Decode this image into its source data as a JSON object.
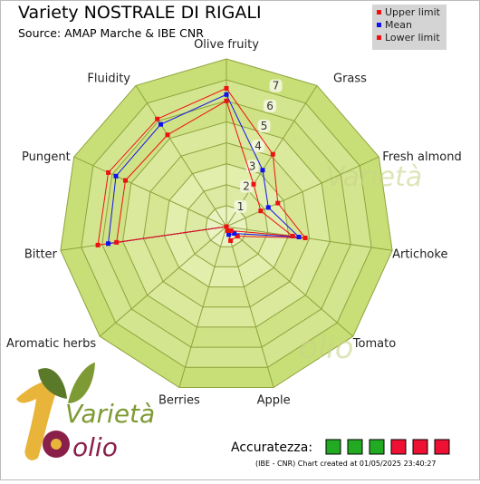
{
  "header": {
    "title": "Variety NOSTRALE DI RIGALI",
    "source": "Source: AMAP Marche & IBE CNR"
  },
  "legend": {
    "items": [
      {
        "label": "Upper limit",
        "color": "#ee1111"
      },
      {
        "label": "Mean",
        "color": "#1111ee"
      },
      {
        "label": "Lower limit",
        "color": "#ee1111"
      }
    ]
  },
  "footer": {
    "accuracy_label": "Accuratezza:",
    "accuracy_boxes": [
      "#22aa22",
      "#22aa22",
      "#22aa22",
      "#ee1133",
      "#ee1133",
      "#ee1133"
    ],
    "credit": "(IBE - CNR) Chart created at 01/05/2025 23:40:27"
  },
  "logo": {
    "text_top": "Varietà",
    "text_bottom": "olio"
  },
  "chart_data": {
    "type": "radar",
    "categories": [
      "Olive fruity",
      "Grass",
      "Fresh almond",
      "Artichoke",
      "Tomato",
      "Apple",
      "Berries",
      "Aromatic herbs",
      "Bitter",
      "Pungent",
      "Fluidity"
    ],
    "ylim": [
      0,
      8
    ],
    "tick_labels": [
      "1",
      "2",
      "3",
      "4",
      "5",
      "6",
      "7"
    ],
    "series": [
      {
        "name": "Upper limit",
        "color": "#ee1111",
        "values": [
          6.6,
          4.1,
          2.7,
          3.8,
          0.7,
          0.7,
          0.0,
          0.0,
          6.2,
          6.2,
          6.1
        ]
      },
      {
        "name": "Mean",
        "color": "#1111ee",
        "values": [
          6.3,
          3.2,
          2.2,
          3.5,
          0.5,
          0.4,
          0.0,
          0.0,
          5.7,
          5.8,
          5.8
        ]
      },
      {
        "name": "Lower limit",
        "color": "#ee1111",
        "values": [
          6.0,
          2.4,
          1.8,
          3.2,
          0.3,
          0.2,
          0.0,
          0.0,
          5.3,
          5.3,
          5.2
        ]
      }
    ]
  }
}
